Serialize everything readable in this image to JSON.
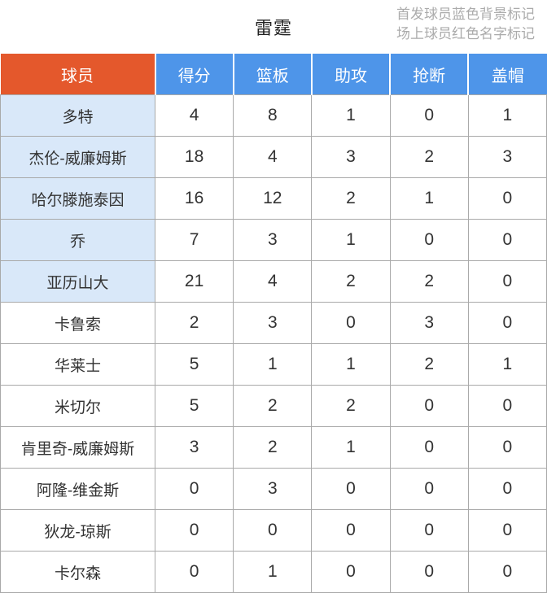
{
  "colors": {
    "orange": "#E4582C",
    "blue": "#4E95E9",
    "starter_blue": "#D9E8F9",
    "grid": "#A9A9A9",
    "header_text": "#FFFFFF",
    "cell_text": "#333333",
    "legend_text": "#ABABAB",
    "title_text": "#222222"
  },
  "header": {
    "title": "雷霆",
    "legend_line1": "首发球员蓝色背景标记",
    "legend_line2": "场上球员红色名字标记"
  },
  "table": {
    "columns": [
      "球员",
      "得分",
      "篮板",
      "助攻",
      "抢断",
      "盖帽"
    ],
    "stat_keys": [
      "points",
      "rebounds",
      "assists",
      "steals",
      "blocks"
    ],
    "rows": [
      {
        "name": "多特",
        "starter": true,
        "stats": [
          "4",
          "8",
          "1",
          "0",
          "1"
        ]
      },
      {
        "name": "杰伦-威廉姆斯",
        "starter": true,
        "stats": [
          "18",
          "4",
          "3",
          "2",
          "3"
        ]
      },
      {
        "name": "哈尔滕施泰因",
        "starter": true,
        "stats": [
          "16",
          "12",
          "2",
          "1",
          "0"
        ]
      },
      {
        "name": "乔",
        "starter": true,
        "stats": [
          "7",
          "3",
          "1",
          "0",
          "0"
        ]
      },
      {
        "name": "亚历山大",
        "starter": true,
        "stats": [
          "21",
          "4",
          "2",
          "2",
          "0"
        ]
      },
      {
        "name": "卡鲁索",
        "starter": false,
        "stats": [
          "2",
          "3",
          "0",
          "3",
          "0"
        ]
      },
      {
        "name": "华莱士",
        "starter": false,
        "stats": [
          "5",
          "1",
          "1",
          "2",
          "1"
        ]
      },
      {
        "name": "米切尔",
        "starter": false,
        "stats": [
          "5",
          "2",
          "2",
          "0",
          "0"
        ]
      },
      {
        "name": "肯里奇-威廉姆斯",
        "starter": false,
        "stats": [
          "3",
          "2",
          "1",
          "0",
          "0"
        ]
      },
      {
        "name": "阿隆-维金斯",
        "starter": false,
        "stats": [
          "0",
          "3",
          "0",
          "0",
          "0"
        ]
      },
      {
        "name": "狄龙-琼斯",
        "starter": false,
        "stats": [
          "0",
          "0",
          "0",
          "0",
          "0"
        ]
      },
      {
        "name": "卡尔森",
        "starter": false,
        "stats": [
          "0",
          "1",
          "0",
          "0",
          "0"
        ]
      }
    ]
  }
}
